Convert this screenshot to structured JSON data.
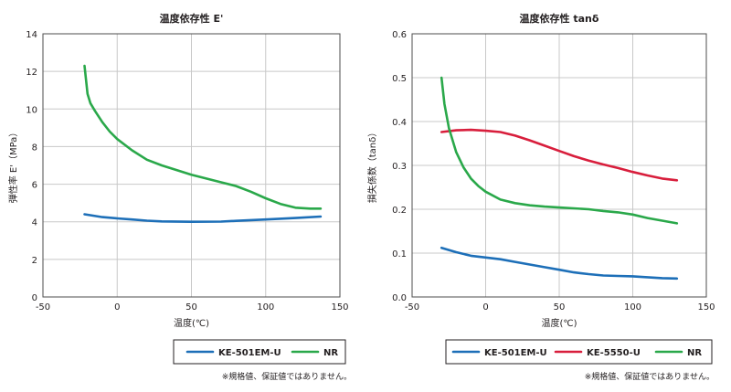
{
  "chart_data": [
    {
      "type": "line",
      "title": "温度依存性 E'",
      "xlabel": "温度(℃)",
      "ylabel": "弾性率 E'（MPa）",
      "xlim": [
        -50,
        150
      ],
      "ylim": [
        0,
        14
      ],
      "xticks": [
        -50,
        0,
        50,
        100,
        150
      ],
      "yticks": [
        0,
        2,
        4,
        6,
        8,
        10,
        12,
        14
      ],
      "grid": true,
      "legend_position": "bottom",
      "note": "※規格値、保証値ではありません。",
      "series": [
        {
          "name": "KE-501EM-U",
          "color": "#1d6fb8",
          "points": [
            [
              -22,
              4.4
            ],
            [
              -10,
              4.25
            ],
            [
              0,
              4.18
            ],
            [
              10,
              4.12
            ],
            [
              20,
              4.06
            ],
            [
              30,
              4.02
            ],
            [
              50,
              4.0
            ],
            [
              70,
              4.01
            ],
            [
              80,
              4.05
            ],
            [
              100,
              4.12
            ],
            [
              120,
              4.2
            ],
            [
              137,
              4.28
            ]
          ]
        },
        {
          "name": "NR",
          "color": "#2aa84a",
          "points": [
            [
              -22,
              12.3
            ],
            [
              -20,
              10.8
            ],
            [
              -18,
              10.3
            ],
            [
              -15,
              9.9
            ],
            [
              -10,
              9.3
            ],
            [
              -5,
              8.8
            ],
            [
              0,
              8.4
            ],
            [
              10,
              7.8
            ],
            [
              20,
              7.3
            ],
            [
              30,
              7.0
            ],
            [
              40,
              6.75
            ],
            [
              50,
              6.5
            ],
            [
              60,
              6.3
            ],
            [
              70,
              6.1
            ],
            [
              80,
              5.9
            ],
            [
              90,
              5.6
            ],
            [
              100,
              5.25
            ],
            [
              110,
              4.95
            ],
            [
              120,
              4.75
            ],
            [
              130,
              4.7
            ],
            [
              137,
              4.7
            ]
          ]
        }
      ]
    },
    {
      "type": "line",
      "title": "温度依存性 tanδ",
      "xlabel": "温度(℃)",
      "ylabel": "損失係数（tanδ）",
      "xlim": [
        -50,
        150
      ],
      "ylim": [
        0,
        0.6
      ],
      "xticks": [
        -50,
        0,
        50,
        100,
        150
      ],
      "yticks": [
        0,
        0.1,
        0.2,
        0.3,
        0.4,
        0.5,
        0.6
      ],
      "grid": true,
      "legend_position": "bottom",
      "note": "※規格値、保証値ではありません。",
      "series": [
        {
          "name": "KE-501EM-U",
          "color": "#1d6fb8",
          "points": [
            [
              -30,
              0.112
            ],
            [
              -20,
              0.102
            ],
            [
              -10,
              0.094
            ],
            [
              0,
              0.09
            ],
            [
              10,
              0.086
            ],
            [
              20,
              0.08
            ],
            [
              30,
              0.074
            ],
            [
              40,
              0.068
            ],
            [
              50,
              0.062
            ],
            [
              60,
              0.056
            ],
            [
              70,
              0.052
            ],
            [
              80,
              0.049
            ],
            [
              90,
              0.048
            ],
            [
              100,
              0.047
            ],
            [
              110,
              0.045
            ],
            [
              120,
              0.043
            ],
            [
              130,
              0.042
            ]
          ]
        },
        {
          "name": "KE-5550-U",
          "color": "#d81e3c",
          "points": [
            [
              -30,
              0.376
            ],
            [
              -20,
              0.38
            ],
            [
              -10,
              0.381
            ],
            [
              0,
              0.379
            ],
            [
              10,
              0.376
            ],
            [
              20,
              0.368
            ],
            [
              30,
              0.357
            ],
            [
              40,
              0.345
            ],
            [
              50,
              0.333
            ],
            [
              60,
              0.321
            ],
            [
              70,
              0.311
            ],
            [
              80,
              0.302
            ],
            [
              90,
              0.294
            ],
            [
              100,
              0.285
            ],
            [
              110,
              0.277
            ],
            [
              120,
              0.27
            ],
            [
              130,
              0.266
            ]
          ]
        },
        {
          "name": "NR",
          "color": "#2aa84a",
          "points": [
            [
              -30,
              0.5
            ],
            [
              -28,
              0.44
            ],
            [
              -25,
              0.385
            ],
            [
              -20,
              0.33
            ],
            [
              -15,
              0.295
            ],
            [
              -10,
              0.27
            ],
            [
              -5,
              0.253
            ],
            [
              0,
              0.24
            ],
            [
              10,
              0.222
            ],
            [
              20,
              0.214
            ],
            [
              30,
              0.209
            ],
            [
              40,
              0.206
            ],
            [
              50,
              0.204
            ],
            [
              60,
              0.202
            ],
            [
              70,
              0.2
            ],
            [
              80,
              0.196
            ],
            [
              90,
              0.193
            ],
            [
              100,
              0.188
            ],
            [
              110,
              0.18
            ],
            [
              120,
              0.174
            ],
            [
              130,
              0.168
            ]
          ]
        }
      ]
    }
  ]
}
